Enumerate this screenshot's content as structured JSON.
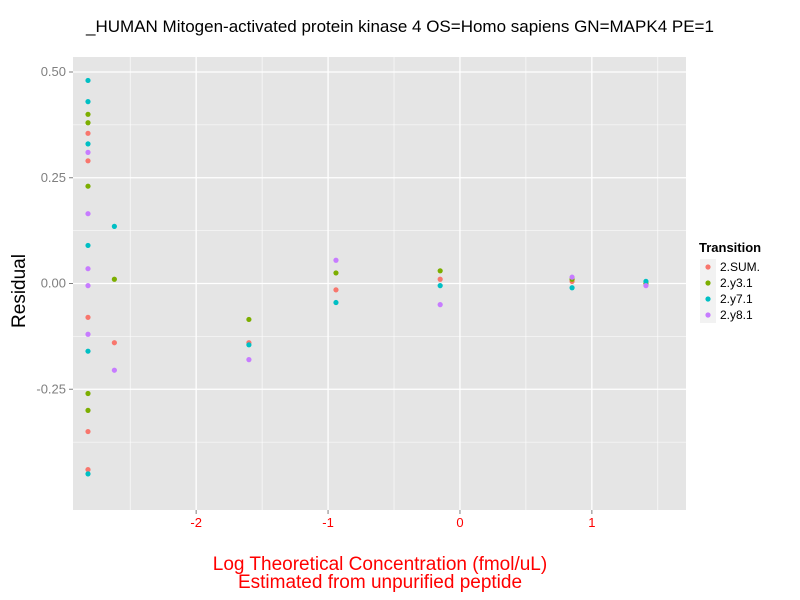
{
  "chart_data": {
    "type": "scatter",
    "title": "_HUMAN Mitogen-activated protein kinase 4 OS=Homo sapiens GN=MAPK4 PE=1",
    "xlabel": [
      "Log Theoretical Concentration (fmol/uL)",
      "Estimated from unpurified peptide"
    ],
    "ylabel": "Residual",
    "xlim": [
      -2.82,
      1.6
    ],
    "ylim": [
      -0.5,
      0.5
    ],
    "x_ticks": [
      -2,
      -1,
      0,
      1
    ],
    "x_tick_labels": [
      "-2",
      "-1",
      "0",
      "1"
    ],
    "y_ticks": [
      -0.25,
      0.0,
      0.25,
      0.5
    ],
    "y_tick_labels": [
      "-0.25",
      "0.00",
      "0.25",
      "0.50"
    ],
    "grid": true,
    "legend": {
      "title": "Transition",
      "position": "right",
      "entries": [
        "2.SUM.",
        "2.y3.1",
        "2.y7.1",
        "2.y8.1"
      ]
    },
    "colors": {
      "panel_bg": "#e5e5e5",
      "grid": "#ffffff",
      "xaxis_text": "#ff0000",
      "yaxis_text": "#7f7f7f"
    },
    "series": [
      {
        "name": "2.SUM.",
        "color": "#f8766d",
        "x": [
          -2.82,
          -2.82,
          -2.82,
          -2.82,
          -2.82,
          -2.62,
          -1.6,
          -0.94,
          -0.15,
          0.85,
          1.41
        ],
        "y": [
          0.355,
          0.29,
          -0.08,
          -0.35,
          -0.44,
          -0.14,
          -0.14,
          -0.015,
          0.01,
          0.005,
          0.0
        ]
      },
      {
        "name": "2.y3.1",
        "color": "#7cae00",
        "x": [
          -2.82,
          -2.82,
          -2.82,
          -2.82,
          -2.82,
          -2.62,
          -1.6,
          -0.94,
          -0.15,
          0.85,
          1.41
        ],
        "y": [
          0.4,
          0.38,
          0.23,
          -0.26,
          -0.3,
          0.01,
          -0.085,
          0.025,
          0.03,
          0.01,
          0.0
        ]
      },
      {
        "name": "2.y7.1",
        "color": "#00bfc4",
        "x": [
          -2.82,
          -2.82,
          -2.82,
          -2.82,
          -2.82,
          -2.82,
          -2.62,
          -1.6,
          -0.94,
          -0.15,
          0.85,
          1.41
        ],
        "y": [
          0.48,
          0.43,
          0.33,
          0.09,
          -0.16,
          -0.45,
          0.135,
          -0.145,
          -0.045,
          -0.005,
          -0.01,
          0.005
        ]
      },
      {
        "name": "2.y8.1",
        "color": "#c77cff",
        "x": [
          -2.82,
          -2.82,
          -2.82,
          -2.82,
          -2.82,
          -2.62,
          -1.6,
          -0.94,
          -0.15,
          0.85,
          1.41
        ],
        "y": [
          0.31,
          0.165,
          0.035,
          -0.005,
          -0.12,
          -0.205,
          -0.18,
          0.055,
          -0.05,
          0.015,
          -0.005
        ]
      }
    ]
  }
}
